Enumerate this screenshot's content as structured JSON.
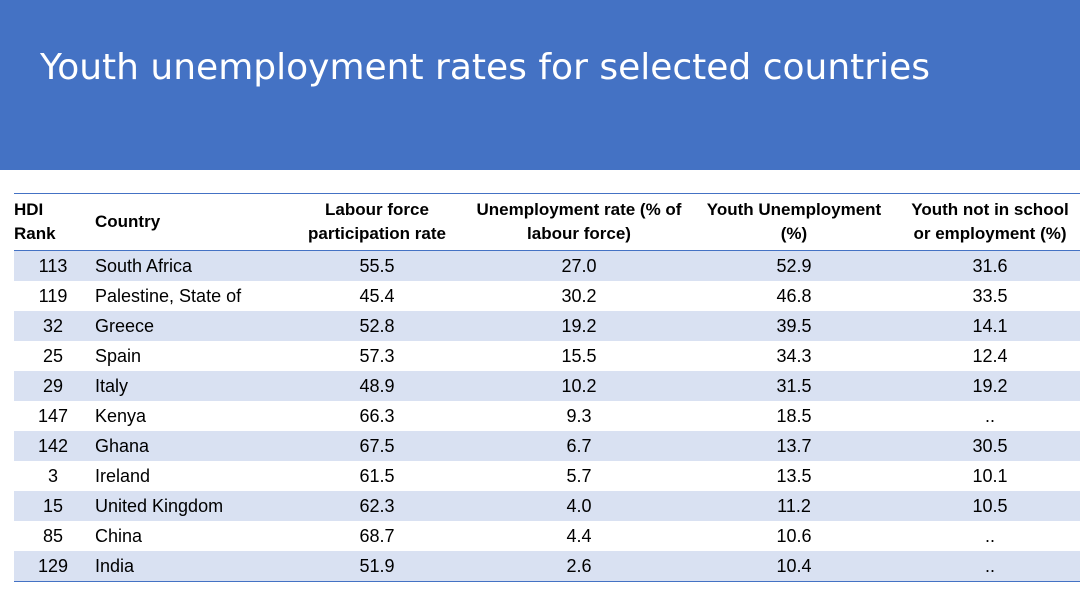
{
  "slide": {
    "title": "Youth unemployment rates for selected countries",
    "accent_color": "#4472c4",
    "row_stripe_color": "#d9e1f2"
  },
  "table": {
    "headers": {
      "rank_line1": "HDI",
      "rank_line2": "Rank",
      "country": "Country",
      "labour_line1": "Labour force",
      "labour_line2": "participation rate",
      "unemp_line1": "Unemployment rate (% of",
      "unemp_line2": "labour force)",
      "youth_line1": "Youth Unemployment",
      "youth_line2": "(%)",
      "neet_line1": "Youth not in school",
      "neet_line2": "or employment (%)"
    },
    "rows": [
      {
        "rank": "113",
        "country": "South Africa",
        "labour": "55.5",
        "unemployment": "27.0",
        "youth": "52.9",
        "neet": "31.6"
      },
      {
        "rank": "119",
        "country": "Palestine, State of",
        "labour": "45.4",
        "unemployment": "30.2",
        "youth": "46.8",
        "neet": "33.5"
      },
      {
        "rank": "32",
        "country": "Greece",
        "labour": "52.8",
        "unemployment": "19.2",
        "youth": "39.5",
        "neet": "14.1"
      },
      {
        "rank": "25",
        "country": "Spain",
        "labour": "57.3",
        "unemployment": "15.5",
        "youth": "34.3",
        "neet": "12.4"
      },
      {
        "rank": "29",
        "country": "Italy",
        "labour": "48.9",
        "unemployment": "10.2",
        "youth": "31.5",
        "neet": "19.2"
      },
      {
        "rank": "147",
        "country": "Kenya",
        "labour": "66.3",
        "unemployment": "9.3",
        "youth": "18.5",
        "neet": ".."
      },
      {
        "rank": "142",
        "country": "Ghana",
        "labour": "67.5",
        "unemployment": "6.7",
        "youth": "13.7",
        "neet": "30.5"
      },
      {
        "rank": "3",
        "country": "Ireland",
        "labour": "61.5",
        "unemployment": "5.7",
        "youth": "13.5",
        "neet": "10.1"
      },
      {
        "rank": "15",
        "country": "United Kingdom",
        "labour": "62.3",
        "unemployment": "4.0",
        "youth": "11.2",
        "neet": "10.5"
      },
      {
        "rank": "85",
        "country": "China",
        "labour": "68.7",
        "unemployment": "4.4",
        "youth": "10.6",
        "neet": ".."
      },
      {
        "rank": "129",
        "country": "India",
        "labour": "51.9",
        "unemployment": "2.6",
        "youth": "10.4",
        "neet": ".."
      }
    ]
  }
}
